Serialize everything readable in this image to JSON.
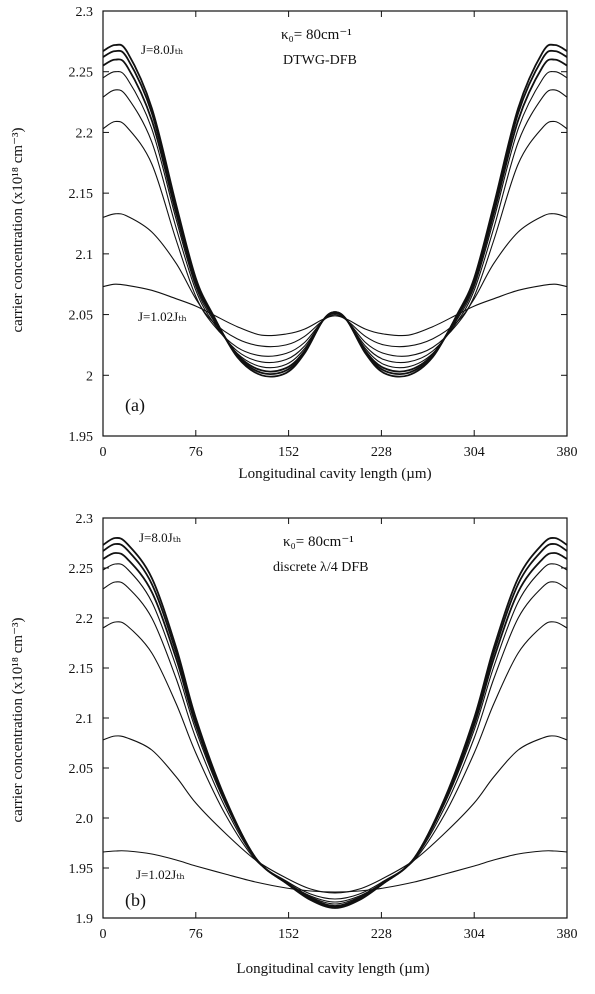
{
  "chart_data": [
    {
      "type": "line",
      "panel_label": "(a)",
      "annotation_kappa": "κ₀= 80cm⁻¹",
      "annotation_device": "DTWG-DFB",
      "label_high_current": "J=8.0Jₜₕ",
      "label_low_current": "J=1.02Jₜₕ",
      "xlabel": "Longitudinal cavity length (µm)",
      "ylabel": "carrier concentration (x10¹⁸ cm⁻³)",
      "xlim": [
        0,
        380
      ],
      "ylim": [
        1.95,
        2.3
      ],
      "x_ticks": [
        "0",
        "76",
        "152",
        "228",
        "304",
        "380"
      ],
      "y_ticks": [
        "1.95",
        "2",
        "2.05",
        "2.1",
        "2.15",
        "2.2",
        "2.25",
        "2.3"
      ],
      "x": [
        0,
        10,
        20,
        40,
        60,
        76,
        90,
        110,
        130,
        150,
        165,
        180,
        190,
        200,
        215,
        230,
        250,
        270,
        290,
        304,
        320,
        340,
        360,
        370,
        380
      ],
      "series": [
        {
          "values": [
            2.267,
            2.272,
            2.266,
            2.22,
            2.14,
            2.08,
            2.05,
            2.015,
            2.0,
            2.002,
            2.018,
            2.045,
            2.052,
            2.045,
            2.018,
            2.002,
            2.0,
            2.015,
            2.05,
            2.08,
            2.14,
            2.22,
            2.266,
            2.272,
            2.267
          ]
        },
        {
          "values": [
            2.262,
            2.267,
            2.261,
            2.216,
            2.137,
            2.078,
            2.049,
            2.016,
            2.002,
            2.004,
            2.019,
            2.045,
            2.052,
            2.045,
            2.019,
            2.004,
            2.002,
            2.016,
            2.049,
            2.078,
            2.137,
            2.216,
            2.261,
            2.267,
            2.262
          ]
        },
        {
          "values": [
            2.255,
            2.26,
            2.254,
            2.21,
            2.133,
            2.076,
            2.048,
            2.017,
            2.004,
            2.006,
            2.02,
            2.045,
            2.052,
            2.045,
            2.02,
            2.006,
            2.004,
            2.017,
            2.048,
            2.076,
            2.133,
            2.21,
            2.254,
            2.26,
            2.255
          ]
        },
        {
          "values": [
            2.245,
            2.25,
            2.244,
            2.203,
            2.128,
            2.073,
            2.046,
            2.018,
            2.007,
            2.009,
            2.022,
            2.045,
            2.052,
            2.045,
            2.022,
            2.009,
            2.007,
            2.018,
            2.046,
            2.073,
            2.128,
            2.203,
            2.244,
            2.25,
            2.245
          ]
        },
        {
          "values": [
            2.229,
            2.235,
            2.229,
            2.192,
            2.121,
            2.07,
            2.044,
            2.02,
            2.011,
            2.013,
            2.024,
            2.045,
            2.052,
            2.045,
            2.024,
            2.013,
            2.011,
            2.02,
            2.044,
            2.07,
            2.121,
            2.192,
            2.229,
            2.235,
            2.229
          ]
        },
        {
          "values": [
            2.203,
            2.209,
            2.204,
            2.174,
            2.111,
            2.065,
            2.042,
            2.023,
            2.016,
            2.018,
            2.027,
            2.045,
            2.051,
            2.045,
            2.027,
            2.018,
            2.016,
            2.023,
            2.042,
            2.065,
            2.111,
            2.174,
            2.204,
            2.209,
            2.203
          ]
        },
        {
          "values": [
            2.13,
            2.133,
            2.131,
            2.118,
            2.092,
            2.063,
            2.044,
            2.03,
            2.024,
            2.025,
            2.032,
            2.045,
            2.05,
            2.045,
            2.032,
            2.025,
            2.024,
            2.03,
            2.044,
            2.063,
            2.092,
            2.118,
            2.131,
            2.133,
            2.13
          ]
        },
        {
          "values": [
            2.073,
            2.075,
            2.074,
            2.07,
            2.063,
            2.057,
            2.05,
            2.04,
            2.033,
            2.034,
            2.038,
            2.046,
            2.049,
            2.046,
            2.038,
            2.034,
            2.033,
            2.04,
            2.05,
            2.057,
            2.063,
            2.07,
            2.074,
            2.075,
            2.073
          ]
        }
      ]
    },
    {
      "type": "line",
      "panel_label": "(b)",
      "annotation_kappa": "κ₀= 80cm⁻¹",
      "annotation_device": "discrete λ/4 DFB",
      "label_high_current": "J=8.0Jₜₕ",
      "label_low_current": "J=1.02Jₜₕ",
      "xlabel": "Longitudinal cavity length (µm)",
      "ylabel": "carrier concentration (x10¹⁸ cm⁻³)",
      "xlim": [
        0,
        380
      ],
      "ylim": [
        1.9,
        2.3
      ],
      "x_ticks": [
        "0",
        "76",
        "152",
        "228",
        "304",
        "380"
      ],
      "y_ticks": [
        "1.9",
        "1.95",
        "2.0",
        "2.05",
        "2.1",
        "2.15",
        "2.2",
        "2.25",
        "2.3"
      ],
      "x": [
        0,
        10,
        20,
        40,
        60,
        76,
        100,
        125,
        150,
        170,
        190,
        210,
        230,
        255,
        280,
        304,
        320,
        340,
        360,
        370,
        380
      ],
      "series": [
        {
          "values": [
            2.273,
            2.28,
            2.274,
            2.24,
            2.17,
            2.1,
            2.02,
            1.96,
            1.935,
            1.918,
            1.91,
            1.918,
            1.935,
            1.96,
            2.02,
            2.1,
            2.17,
            2.24,
            2.274,
            2.28,
            2.273
          ]
        },
        {
          "values": [
            2.267,
            2.274,
            2.268,
            2.234,
            2.165,
            2.097,
            2.019,
            1.96,
            1.935,
            1.919,
            1.911,
            1.919,
            1.935,
            1.96,
            2.019,
            2.097,
            2.165,
            2.234,
            2.268,
            2.274,
            2.267
          ]
        },
        {
          "values": [
            2.259,
            2.265,
            2.259,
            2.226,
            2.159,
            2.093,
            2.017,
            1.96,
            1.935,
            1.92,
            1.912,
            1.92,
            1.935,
            1.96,
            2.017,
            2.093,
            2.159,
            2.226,
            2.259,
            2.265,
            2.259
          ]
        },
        {
          "values": [
            2.248,
            2.254,
            2.249,
            2.216,
            2.151,
            2.088,
            2.015,
            1.96,
            1.936,
            1.921,
            1.914,
            1.921,
            1.936,
            1.96,
            2.015,
            2.088,
            2.151,
            2.216,
            2.249,
            2.254,
            2.248
          ]
        },
        {
          "values": [
            2.229,
            2.236,
            2.231,
            2.2,
            2.139,
            2.08,
            2.011,
            1.959,
            1.936,
            1.922,
            1.916,
            1.922,
            1.936,
            1.959,
            2.011,
            2.08,
            2.139,
            2.2,
            2.231,
            2.236,
            2.229
          ]
        },
        {
          "values": [
            2.19,
            2.196,
            2.192,
            2.165,
            2.114,
            2.065,
            2.004,
            1.958,
            1.937,
            1.924,
            1.919,
            1.924,
            1.937,
            1.958,
            2.004,
            2.065,
            2.114,
            2.165,
            2.192,
            2.196,
            2.19
          ]
        },
        {
          "values": [
            2.078,
            2.082,
            2.08,
            2.068,
            2.041,
            2.015,
            1.985,
            1.958,
            1.94,
            1.929,
            1.925,
            1.929,
            1.94,
            1.958,
            1.985,
            2.015,
            2.041,
            2.068,
            2.08,
            2.082,
            2.078
          ]
        },
        {
          "values": [
            1.966,
            1.967,
            1.967,
            1.964,
            1.958,
            1.952,
            1.944,
            1.936,
            1.93,
            1.927,
            1.926,
            1.927,
            1.93,
            1.936,
            1.944,
            1.952,
            1.958,
            1.964,
            1.967,
            1.967,
            1.966
          ]
        }
      ]
    }
  ]
}
